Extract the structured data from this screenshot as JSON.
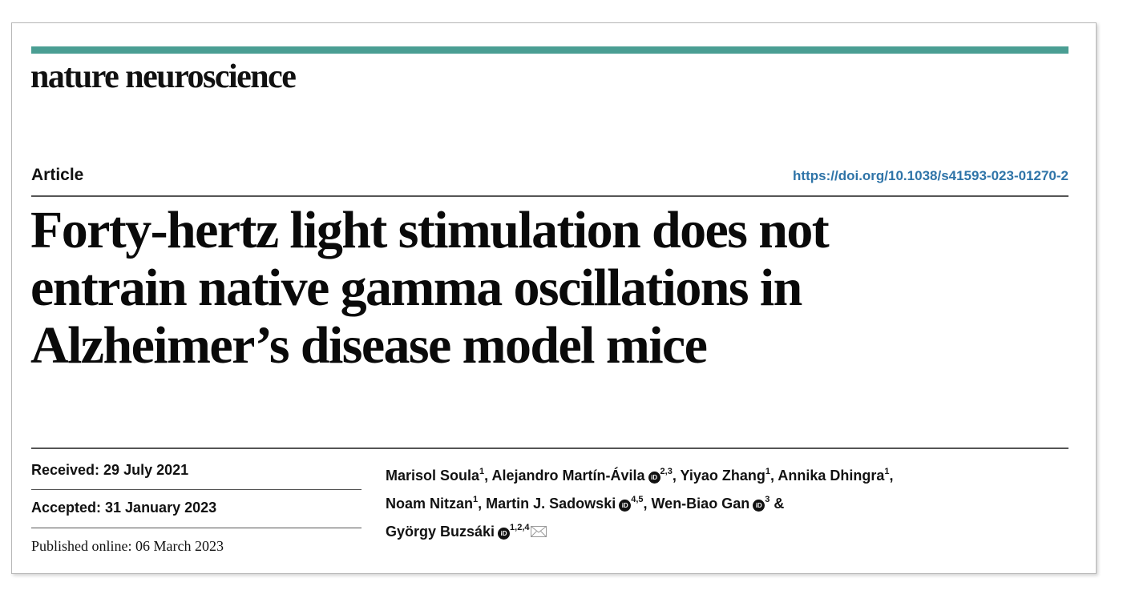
{
  "journal": "nature neuroscience",
  "article_type": "Article",
  "doi": "https://doi.org/10.1038/s41593-023-01270-2",
  "title_lines": [
    "Forty-hertz light stimulation does not",
    "entrain native gamma oscillations in",
    "Alzheimer’s disease model mice"
  ],
  "dates": {
    "received": "Received: 29 July 2021",
    "accepted": "Accepted: 31 January 2023",
    "published": "Published online: 06 March 2023"
  },
  "authors": [
    {
      "name": "Marisol Soula",
      "aff": "1",
      "orcid": false,
      "sep": ", "
    },
    {
      "name": "Alejandro Martín-Ávila",
      "aff": "2,3",
      "orcid": true,
      "sep": ", "
    },
    {
      "name": "Yiyao Zhang",
      "aff": "1",
      "orcid": false,
      "sep": ", "
    },
    {
      "name": "Annika Dhingra",
      "aff": "1",
      "orcid": false,
      "sep": ","
    },
    {
      "name": "Noam Nitzan",
      "aff": "1",
      "orcid": false,
      "sep": ", "
    },
    {
      "name": "Martin J. Sadowski",
      "aff": "4,5",
      "orcid": true,
      "sep": ", "
    },
    {
      "name": "Wen-Biao Gan",
      "aff": "3",
      "orcid": true,
      "sep": " &"
    },
    {
      "name": "György Buzsáki",
      "aff": "1,2,4",
      "orcid": true,
      "sep": ""
    }
  ],
  "icons": {
    "orcid": "orcid-icon",
    "mail": "mail-icon"
  },
  "colors": {
    "accent_bar": "#4a9e93",
    "doi_link": "#2f74a8"
  }
}
